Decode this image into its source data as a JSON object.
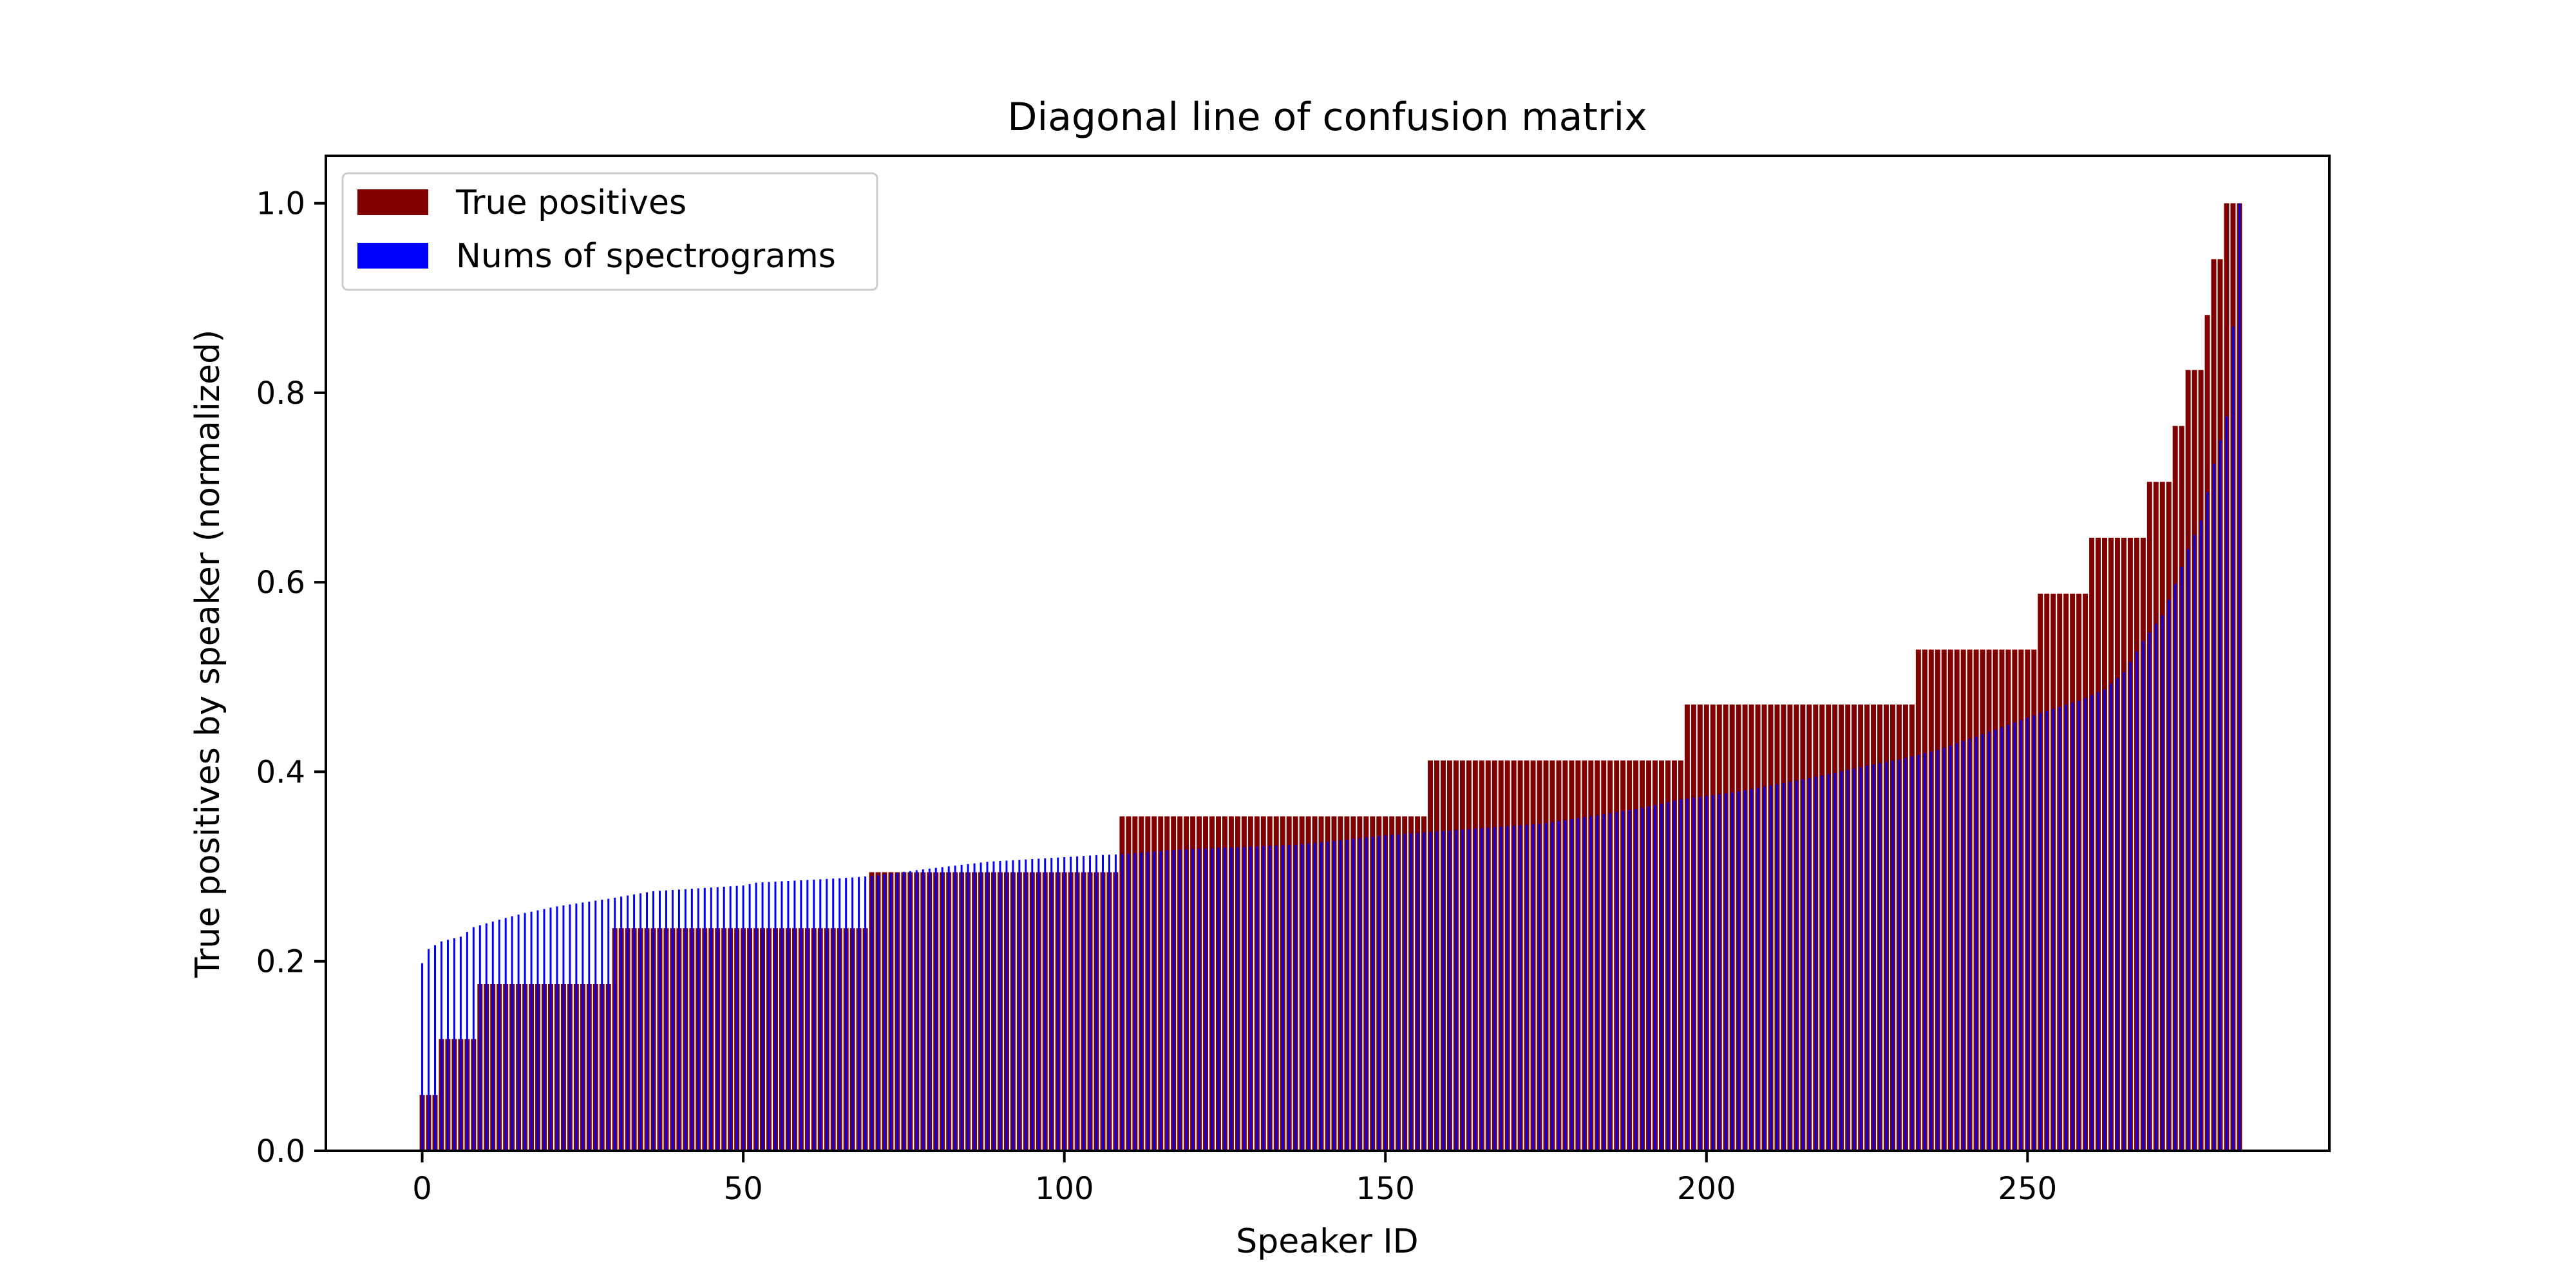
{
  "chart_data": {
    "type": "bar",
    "title": "Diagonal line of confusion matrix",
    "xlabel": "Speaker ID",
    "ylabel": "True positives by speaker (normalized)",
    "xlim": [
      -15,
      297
    ],
    "ylim": [
      0,
      1.05
    ],
    "xticks": [
      0,
      50,
      100,
      150,
      200,
      250
    ],
    "xtick_labels": [
      "0",
      "50",
      "100",
      "150",
      "200",
      "250"
    ],
    "yticks": [
      0.0,
      0.2,
      0.4,
      0.6,
      0.8,
      1.0
    ],
    "ytick_labels": [
      "0.0",
      "0.2",
      "0.4",
      "0.6",
      "0.8",
      "1.0"
    ],
    "grid": false,
    "legend_position": "top-left",
    "num_speakers": 284,
    "series": [
      {
        "name": "True positives",
        "color": "#800000",
        "steps": [
          {
            "from": 0,
            "to": 2,
            "value": 0.059
          },
          {
            "from": 3,
            "to": 8,
            "value": 0.118
          },
          {
            "from": 9,
            "to": 29,
            "value": 0.176
          },
          {
            "from": 30,
            "to": 69,
            "value": 0.235
          },
          {
            "from": 70,
            "to": 108,
            "value": 0.294
          },
          {
            "from": 109,
            "to": 156,
            "value": 0.353
          },
          {
            "from": 157,
            "to": 196,
            "value": 0.412
          },
          {
            "from": 197,
            "to": 232,
            "value": 0.471
          },
          {
            "from": 233,
            "to": 251,
            "value": 0.529
          },
          {
            "from": 252,
            "to": 259,
            "value": 0.588
          },
          {
            "from": 260,
            "to": 268,
            "value": 0.647
          },
          {
            "from": 269,
            "to": 272,
            "value": 0.706
          },
          {
            "from": 273,
            "to": 274,
            "value": 0.765
          },
          {
            "from": 275,
            "to": 277,
            "value": 0.824
          },
          {
            "from": 278,
            "to": 278,
            "value": 0.882
          },
          {
            "from": 279,
            "to": 280,
            "value": 0.941
          },
          {
            "from": 281,
            "to": 283,
            "value": 1.0
          }
        ]
      },
      {
        "name": "Nums of spectrograms",
        "color": "#0000ff",
        "points": [
          [
            0,
            0.198
          ],
          [
            1,
            0.213
          ],
          [
            3,
            0.221
          ],
          [
            6,
            0.226
          ],
          [
            8,
            0.236
          ],
          [
            12,
            0.244
          ],
          [
            16,
            0.251
          ],
          [
            21,
            0.258
          ],
          [
            29,
            0.266
          ],
          [
            36,
            0.274
          ],
          [
            50,
            0.28
          ],
          [
            52,
            0.283
          ],
          [
            66,
            0.288
          ],
          [
            70,
            0.29
          ],
          [
            78,
            0.297
          ],
          [
            88,
            0.305
          ],
          [
            105,
            0.312
          ],
          [
            109,
            0.313
          ],
          [
            118,
            0.318
          ],
          [
            136,
            0.323
          ],
          [
            142,
            0.327
          ],
          [
            150,
            0.333
          ],
          [
            160,
            0.338
          ],
          [
            174,
            0.345
          ],
          [
            182,
            0.353
          ],
          [
            190,
            0.362
          ],
          [
            196,
            0.371
          ],
          [
            204,
            0.378
          ],
          [
            212,
            0.388
          ],
          [
            218,
            0.396
          ],
          [
            224,
            0.405
          ],
          [
            230,
            0.413
          ],
          [
            236,
            0.423
          ],
          [
            244,
            0.442
          ],
          [
            252,
            0.462
          ],
          [
            258,
            0.475
          ],
          [
            262,
            0.487
          ],
          [
            265,
            0.505
          ],
          [
            268,
            0.538
          ],
          [
            271,
            0.565
          ],
          [
            273,
            0.598
          ],
          [
            275,
            0.635
          ],
          [
            277,
            0.665
          ],
          [
            279,
            0.725
          ],
          [
            281,
            0.775
          ],
          [
            282,
            0.87
          ],
          [
            283,
            1.0
          ]
        ]
      }
    ]
  }
}
